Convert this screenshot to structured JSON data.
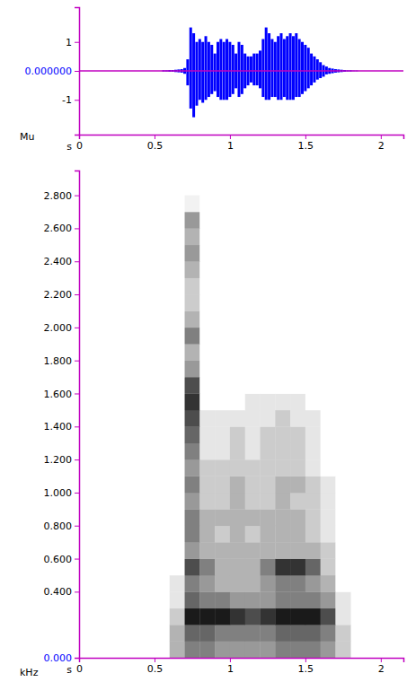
{
  "chart_data": [
    {
      "type": "area",
      "color": "#0000ff",
      "x_label": "s",
      "y_label": "Mu",
      "xlim": [
        0,
        2.15
      ],
      "xticks": [
        0,
        0.5,
        1,
        1.5,
        2
      ],
      "ylim": [
        -2.2,
        2.2
      ],
      "yticks": [
        -1,
        {
          "value": 0,
          "label": "0.000000"
        },
        1
      ],
      "x": [
        0.56,
        0.58,
        0.6,
        0.62,
        0.64,
        0.66,
        0.68,
        0.7,
        0.72,
        0.74,
        0.76,
        0.78,
        0.8,
        0.82,
        0.84,
        0.86,
        0.88,
        0.9,
        0.92,
        0.94,
        0.96,
        0.98,
        1.0,
        1.02,
        1.04,
        1.06,
        1.08,
        1.1,
        1.12,
        1.14,
        1.16,
        1.18,
        1.2,
        1.22,
        1.24,
        1.26,
        1.28,
        1.3,
        1.32,
        1.34,
        1.36,
        1.38,
        1.4,
        1.42,
        1.44,
        1.46,
        1.48,
        1.5,
        1.52,
        1.54,
        1.56,
        1.58,
        1.6,
        1.62,
        1.64,
        1.66,
        1.68,
        1.7,
        1.72,
        1.74,
        1.76,
        1.78,
        1.8,
        1.82,
        1.84
      ],
      "upper": [
        0.02,
        0.02,
        0.03,
        0.03,
        0.04,
        0.05,
        0.06,
        0.1,
        0.4,
        1.5,
        1.3,
        1.0,
        1.1,
        1.0,
        1.2,
        1.0,
        0.9,
        0.6,
        1.0,
        1.1,
        1.0,
        1.1,
        1.0,
        0.9,
        0.6,
        1.0,
        0.9,
        0.6,
        0.5,
        0.5,
        0.6,
        0.6,
        0.7,
        1.1,
        1.5,
        1.3,
        1.1,
        1.0,
        1.2,
        1.3,
        1.1,
        1.2,
        1.3,
        1.2,
        1.3,
        1.1,
        1.0,
        0.9,
        0.8,
        0.6,
        0.5,
        0.4,
        0.3,
        0.2,
        0.15,
        0.1,
        0.08,
        0.06,
        0.05,
        0.04,
        0.03,
        0.02,
        0.02,
        0.01,
        0.01
      ],
      "lower": [
        -0.02,
        -0.02,
        -0.03,
        -0.03,
        -0.04,
        -0.05,
        -0.06,
        -0.1,
        -0.5,
        -1.3,
        -1.6,
        -1.2,
        -1.0,
        -1.1,
        -1.0,
        -0.9,
        -0.8,
        -0.7,
        -0.9,
        -1.0,
        -1.0,
        -1.0,
        -0.9,
        -0.8,
        -0.6,
        -0.9,
        -0.8,
        -0.6,
        -0.5,
        -0.4,
        -0.5,
        -0.5,
        -0.6,
        -0.9,
        -1.0,
        -1.0,
        -0.9,
        -0.9,
        -1.0,
        -1.0,
        -0.9,
        -1.0,
        -1.0,
        -1.0,
        -0.9,
        -0.9,
        -0.8,
        -0.7,
        -0.6,
        -0.5,
        -0.4,
        -0.3,
        -0.25,
        -0.2,
        -0.12,
        -0.1,
        -0.08,
        -0.06,
        -0.05,
        -0.04,
        -0.03,
        -0.02,
        -0.02,
        -0.01,
        -0.01
      ]
    },
    {
      "type": "heatmap",
      "color": "#000000",
      "x_label": "s",
      "y_label": "kHz",
      "xlim": [
        0,
        2.15
      ],
      "xticks": [
        0,
        0.5,
        1,
        1.5,
        2
      ],
      "ylim": [
        0,
        2.95
      ],
      "yticks": [
        {
          "value": 0,
          "label": "0.000"
        },
        {
          "value": 0.4,
          "label": "0.400"
        },
        {
          "value": 0.6,
          "label": "0.600"
        },
        {
          "value": 0.8,
          "label": "0.800"
        },
        {
          "value": 1,
          "label": "1.000"
        },
        {
          "value": 1.2,
          "label": "1.200"
        },
        {
          "value": 1.4,
          "label": "1.400"
        },
        {
          "value": 1.6,
          "label": "1.600"
        },
        {
          "value": 1.8,
          "label": "1.800"
        },
        {
          "value": 2,
          "label": "2.000"
        },
        {
          "value": 2.2,
          "label": "2.200"
        },
        {
          "value": 2.4,
          "label": "2.400"
        },
        {
          "value": 2.6,
          "label": "2.600"
        },
        {
          "value": 2.8,
          "label": "2.800"
        }
      ],
      "zlim": [
        0,
        1
      ],
      "x_edges": [
        0.6,
        0.7,
        0.8,
        0.9,
        1.0,
        1.1,
        1.2,
        1.3,
        1.4,
        1.5,
        1.6,
        1.7,
        1.8
      ],
      "y_edges": [
        0,
        0.1,
        0.2,
        0.3,
        0.4,
        0.5,
        0.6,
        0.7,
        0.8,
        0.9,
        1.0,
        1.1,
        1.2,
        1.3,
        1.4,
        1.5,
        1.6,
        1.7,
        1.8,
        1.9,
        2.0,
        2.1,
        2.2,
        2.3,
        2.4,
        2.5,
        2.6,
        2.7,
        2.8
      ],
      "z": [
        [
          0.3,
          0.5,
          0.5,
          0.4,
          0.4,
          0.4,
          0.4,
          0.5,
          0.5,
          0.5,
          0.4,
          0.2
        ],
        [
          0.3,
          0.6,
          0.6,
          0.5,
          0.5,
          0.5,
          0.5,
          0.6,
          0.6,
          0.6,
          0.5,
          0.2
        ],
        [
          0.2,
          0.9,
          0.9,
          0.9,
          0.8,
          0.7,
          0.8,
          0.9,
          0.9,
          0.9,
          0.7,
          0.1
        ],
        [
          0.1,
          0.6,
          0.5,
          0.5,
          0.4,
          0.4,
          0.4,
          0.5,
          0.5,
          0.5,
          0.4,
          0.1
        ],
        [
          0.1,
          0.5,
          0.4,
          0.3,
          0.3,
          0.3,
          0.4,
          0.5,
          0.5,
          0.4,
          0.3,
          0
        ],
        [
          0,
          0.7,
          0.5,
          0.3,
          0.3,
          0.3,
          0.5,
          0.8,
          0.8,
          0.6,
          0.2,
          0
        ],
        [
          0,
          0.4,
          0.3,
          0.3,
          0.3,
          0.3,
          0.3,
          0.3,
          0.3,
          0.3,
          0.2,
          0
        ],
        [
          0,
          0.5,
          0.3,
          0.2,
          0.3,
          0.2,
          0.3,
          0.3,
          0.3,
          0.2,
          0.1,
          0
        ],
        [
          0,
          0.5,
          0.3,
          0.3,
          0.3,
          0.3,
          0.3,
          0.3,
          0.3,
          0.2,
          0.1,
          0
        ],
        [
          0,
          0.4,
          0.2,
          0.2,
          0.3,
          0.2,
          0.2,
          0.3,
          0.2,
          0.2,
          0.1,
          0
        ],
        [
          0,
          0.5,
          0.2,
          0.2,
          0.3,
          0.2,
          0.2,
          0.3,
          0.3,
          0.2,
          0.1,
          0
        ],
        [
          0,
          0.4,
          0.2,
          0.2,
          0.2,
          0.2,
          0.2,
          0.2,
          0.2,
          0.1,
          0,
          0
        ],
        [
          0,
          0.5,
          0.1,
          0.1,
          0.2,
          0.1,
          0.2,
          0.2,
          0.2,
          0.1,
          0,
          0
        ],
        [
          0,
          0.6,
          0.1,
          0.1,
          0.2,
          0.1,
          0.2,
          0.2,
          0.2,
          0.1,
          0,
          0
        ],
        [
          0,
          0.7,
          0.1,
          0.1,
          0.1,
          0.1,
          0.1,
          0.2,
          0.1,
          0.1,
          0,
          0
        ],
        [
          0,
          0.8,
          0,
          0,
          0,
          0.1,
          0.1,
          0.1,
          0.1,
          0,
          0,
          0
        ],
        [
          0,
          0.7,
          0,
          0,
          0,
          0,
          0,
          0,
          0,
          0,
          0,
          0
        ],
        [
          0,
          0.4,
          0,
          0,
          0,
          0,
          0,
          0,
          0,
          0,
          0,
          0
        ],
        [
          0,
          0.3,
          0,
          0,
          0,
          0,
          0,
          0,
          0,
          0,
          0,
          0
        ],
        [
          0,
          0.5,
          0,
          0,
          0,
          0,
          0,
          0,
          0,
          0,
          0,
          0
        ],
        [
          0,
          0.3,
          0,
          0,
          0,
          0,
          0,
          0,
          0,
          0,
          0,
          0
        ],
        [
          0,
          0.2,
          0,
          0,
          0,
          0,
          0,
          0,
          0,
          0,
          0,
          0
        ],
        [
          0,
          0.2,
          0,
          0,
          0,
          0,
          0,
          0,
          0,
          0,
          0,
          0
        ],
        [
          0,
          0.3,
          0,
          0,
          0,
          0,
          0,
          0,
          0,
          0,
          0,
          0
        ],
        [
          0,
          0.4,
          0,
          0,
          0,
          0,
          0,
          0,
          0,
          0,
          0,
          0
        ],
        [
          0,
          0.3,
          0,
          0,
          0,
          0,
          0,
          0,
          0,
          0,
          0,
          0
        ],
        [
          0,
          0.4,
          0,
          0,
          0,
          0,
          0,
          0,
          0,
          0,
          0,
          0
        ],
        [
          0,
          0.05,
          0,
          0,
          0,
          0,
          0,
          0,
          0,
          0,
          0,
          0
        ]
      ]
    }
  ]
}
